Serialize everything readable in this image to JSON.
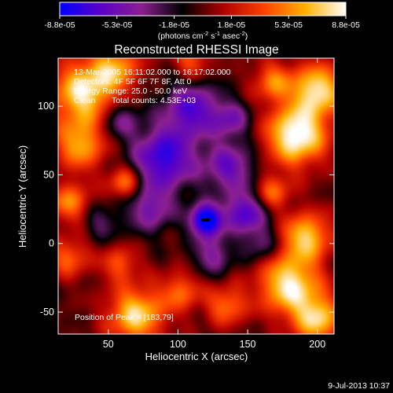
{
  "chart_data": {
    "type": "heatmap",
    "title": "Reconstructed RHESSI Image",
    "xlabel": "Heliocentric X (arcsec)",
    "ylabel": "Heliocentric Y (arcsec)",
    "xlim": [
      14,
      212
    ],
    "ylim": [
      -66,
      135
    ],
    "x_ticks": [
      50,
      100,
      150,
      200
    ],
    "y_ticks": [
      -50,
      0,
      50,
      100
    ],
    "colorbar": {
      "min": -8.8e-05,
      "max": 8.8e-05,
      "tick_labels": [
        "-8.8e-05",
        "-5.3e-05",
        "-1.8e-05",
        "1.8e-05",
        "5.3e-05",
        "8.8e-05"
      ],
      "label_main": "(photons cm",
      "label_exp1": "-2",
      "label_mid1": " s",
      "label_exp2": "-1",
      "label_mid2": " asec",
      "label_exp3": "-2",
      "label_end": ")",
      "colormap": [
        "#0000ff",
        "#5a00c8",
        "#8a2090",
        "#000000",
        "#b00000",
        "#ff4000",
        "#ffb000",
        "#ffffff"
      ]
    },
    "annotations": {
      "time_range": "13-Mar-2005 16:11:02.000 to 16:17:02.000",
      "detectors": "Detectors: 4F 5F 6F 7F 8F, Att 0",
      "energy": "Energy Range: 25.0 - 50.0 keV",
      "clean": "Clean",
      "total_counts": "Total counts: 4.53E+03",
      "peak": "Position of Peak = [183,79]"
    },
    "peak": [
      183,
      79
    ],
    "field_description": "mixed positive (red/yellow) and negative (blue/purple) intensity field; deepest negative near (120,17)",
    "blobs": [
      {
        "x": 32,
        "y": 110,
        "a": 1.0,
        "s": 16
      },
      {
        "x": 55,
        "y": 128,
        "a": 0.7,
        "s": 12
      },
      {
        "x": 30,
        "y": 72,
        "a": 0.75,
        "s": 13
      },
      {
        "x": 62,
        "y": 44,
        "a": 0.7,
        "s": 8
      },
      {
        "x": 22,
        "y": 30,
        "a": 0.65,
        "s": 10
      },
      {
        "x": 22,
        "y": -10,
        "a": 0.55,
        "s": 10
      },
      {
        "x": 58,
        "y": -15,
        "a": 0.5,
        "s": 9
      },
      {
        "x": 70,
        "y": -52,
        "a": 0.95,
        "s": 14
      },
      {
        "x": 102,
        "y": -35,
        "a": 0.55,
        "s": 10
      },
      {
        "x": 135,
        "y": -45,
        "a": 0.6,
        "s": 10
      },
      {
        "x": 180,
        "y": -30,
        "a": 1.05,
        "s": 15
      },
      {
        "x": 200,
        "y": -55,
        "a": 0.9,
        "s": 12
      },
      {
        "x": 192,
        "y": 5,
        "a": 0.9,
        "s": 12
      },
      {
        "x": 168,
        "y": 38,
        "a": 0.55,
        "s": 9
      },
      {
        "x": 185,
        "y": 79,
        "a": 1.2,
        "s": 15
      },
      {
        "x": 200,
        "y": 112,
        "a": 1.0,
        "s": 13
      },
      {
        "x": 168,
        "y": 118,
        "a": 0.6,
        "s": 10
      },
      {
        "x": 110,
        "y": 132,
        "a": 0.5,
        "s": 9
      },
      {
        "x": 90,
        "y": 62,
        "a": -0.95,
        "s": 16
      },
      {
        "x": 110,
        "y": 98,
        "a": -0.8,
        "s": 14
      },
      {
        "x": 137,
        "y": 55,
        "a": -0.7,
        "s": 13
      },
      {
        "x": 120,
        "y": 17,
        "a": -1.3,
        "s": 8
      },
      {
        "x": 148,
        "y": 22,
        "a": -0.85,
        "s": 10
      },
      {
        "x": 80,
        "y": 25,
        "a": -0.6,
        "s": 12
      },
      {
        "x": 58,
        "y": 90,
        "a": -0.5,
        "s": 10
      },
      {
        "x": 138,
        "y": 90,
        "a": -0.55,
        "s": 10
      },
      {
        "x": 125,
        "y": -8,
        "a": -0.55,
        "s": 10
      },
      {
        "x": 45,
        "y": 15,
        "a": -0.35,
        "s": 9
      },
      {
        "x": 160,
        "y": 0,
        "a": -0.45,
        "s": 9
      }
    ]
  },
  "footer": {
    "date": "9-Jul-2013 10:37"
  }
}
